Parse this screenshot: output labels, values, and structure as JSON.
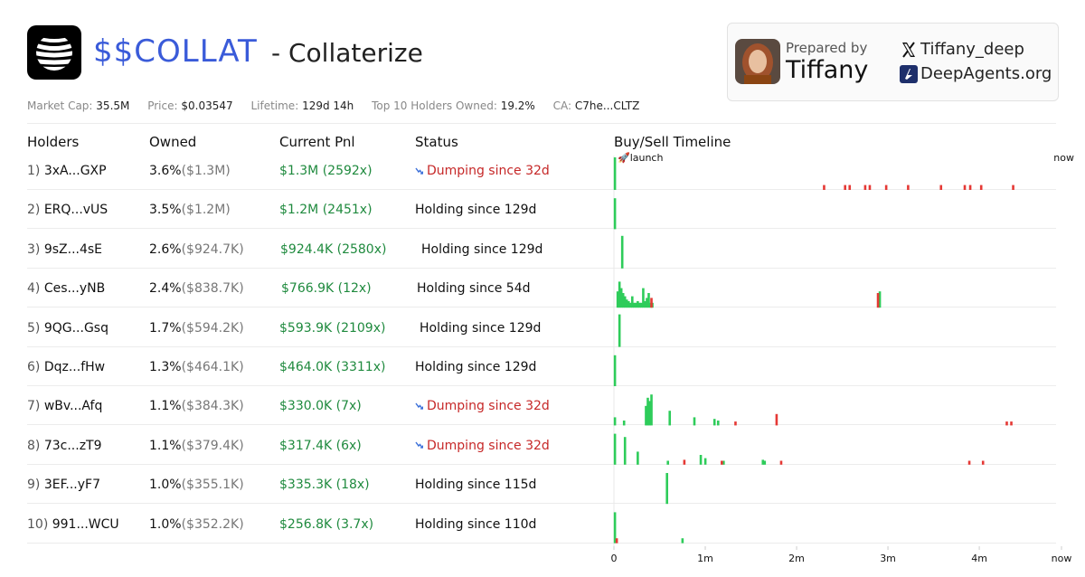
{
  "token": {
    "ticker": "$$COLLAT",
    "name": "- Collaterize"
  },
  "stats": [
    {
      "label": "Market Cap:",
      "value": "35.5M"
    },
    {
      "label": "Price:",
      "value": "$0.03547"
    },
    {
      "label": "Lifetime:",
      "value": "129d 14h"
    },
    {
      "label": "Top 10 Holders Owned:",
      "value": "19.2%"
    },
    {
      "label": "CA:",
      "value": "C7he...CLTZ"
    }
  ],
  "prepared": {
    "label": "Prepared by",
    "name": "Tiffany",
    "x_handle": "Tiffany_deep",
    "website": "DeepAgents.org"
  },
  "columns": {
    "holders": "Holders",
    "owned": "Owned",
    "pnl": "Current Pnl",
    "status": "Status",
    "timeline": "Buy/Sell Timeline"
  },
  "timeline": {
    "launch_label": "🚀launch",
    "now_label_top": "now",
    "x_ticks": [
      "0",
      "1m",
      "2m",
      "3m",
      "4m",
      "now"
    ],
    "colors": {
      "buy": "#2ecc5a",
      "sell": "#e53935"
    }
  },
  "holders": [
    {
      "rank": "1)",
      "address": "3xA...GXP",
      "pct": "3.6%",
      "usd": "($1.3M)",
      "pnl": "$1.3M (2592x)",
      "status": "Dumping since 32d",
      "dumping": true
    },
    {
      "rank": "2)",
      "address": "ERQ...vUS",
      "pct": "3.5%",
      "usd": "($1.2M)",
      "pnl": "$1.2M (2451x)",
      "status": "Holding since 129d",
      "dumping": false
    },
    {
      "rank": "3)",
      "address": "9sZ...4sE",
      "pct": "2.6%",
      "usd": "($924.7K)",
      "pnl": "$924.4K (2580x)",
      "status": "Holding since 129d",
      "dumping": false
    },
    {
      "rank": "4)",
      "address": "Ces...yNB",
      "pct": "2.4%",
      "usd": "($838.7K)",
      "pnl": "$766.9K (12x)",
      "status": "Holding since 54d",
      "dumping": false
    },
    {
      "rank": "5)",
      "address": "9QG...Gsq",
      "pct": "1.7%",
      "usd": "($594.2K)",
      "pnl": "$593.9K (2109x)",
      "status": "Holding since 129d",
      "dumping": false
    },
    {
      "rank": "6)",
      "address": "Dqz...fHw",
      "pct": "1.3%",
      "usd": "($464.1K)",
      "pnl": "$464.0K (3311x)",
      "status": "Holding since 129d",
      "dumping": false
    },
    {
      "rank": "7)",
      "address": "wBv...Afq",
      "pct": "1.1%",
      "usd": "($384.3K)",
      "pnl": "$330.0K (7x)",
      "status": "Dumping since 32d",
      "dumping": true
    },
    {
      "rank": "8)",
      "address": "73c...zT9",
      "pct": "1.1%",
      "usd": "($379.4K)",
      "pnl": "$317.4K (6x)",
      "status": "Dumping since 32d",
      "dumping": true
    },
    {
      "rank": "9)",
      "address": "3EF...yF7",
      "pct": "1.0%",
      "usd": "($355.1K)",
      "pnl": "$335.3K (18x)",
      "status": "Holding since 115d",
      "dumping": false
    },
    {
      "rank": "10)",
      "address": "991...WCU",
      "pct": "1.0%",
      "usd": "($352.2K)",
      "pnl": "$256.8K (3.7x)",
      "status": "Holding since 110d",
      "dumping": false
    }
  ],
  "chart_data": {
    "type": "bar",
    "x_unit": "months since launch",
    "xlim": [
      0,
      4.9
    ],
    "rows": [
      {
        "buys": [
          [
            0.01,
            1.0
          ]
        ],
        "sells": [
          [
            2.3,
            0.15
          ],
          [
            2.53,
            0.15
          ],
          [
            2.58,
            0.15
          ],
          [
            2.75,
            0.15
          ],
          [
            2.8,
            0.15
          ],
          [
            2.98,
            0.15
          ],
          [
            3.22,
            0.15
          ],
          [
            3.58,
            0.15
          ],
          [
            3.84,
            0.15
          ],
          [
            3.9,
            0.15
          ],
          [
            4.02,
            0.15
          ],
          [
            4.37,
            0.15
          ]
        ]
      },
      {
        "buys": [
          [
            0.01,
            0.95
          ]
        ],
        "sells": []
      },
      {
        "buys": [
          [
            0.09,
            1.0
          ]
        ],
        "sells": []
      },
      {
        "buys": [
          [
            0.04,
            0.5
          ],
          [
            0.06,
            0.8
          ],
          [
            0.08,
            0.6
          ],
          [
            0.1,
            0.45
          ],
          [
            0.12,
            0.35
          ],
          [
            0.14,
            0.25
          ],
          [
            0.16,
            0.2
          ],
          [
            0.18,
            0.15
          ],
          [
            0.2,
            0.35
          ],
          [
            0.22,
            0.15
          ],
          [
            0.24,
            0.15
          ],
          [
            0.26,
            0.2
          ],
          [
            0.28,
            0.15
          ],
          [
            0.3,
            0.15
          ],
          [
            0.32,
            0.6
          ],
          [
            0.34,
            0.2
          ],
          [
            0.36,
            0.3
          ],
          [
            0.38,
            0.45
          ],
          [
            0.4,
            0.15
          ],
          [
            0.42,
            0.15
          ],
          [
            2.91,
            0.5
          ]
        ],
        "sells": [
          [
            0.41,
            0.3
          ],
          [
            2.89,
            0.45
          ]
        ]
      },
      {
        "buys": [
          [
            0.06,
            1.0
          ]
        ],
        "sells": []
      },
      {
        "buys": [
          [
            0.01,
            0.95
          ]
        ],
        "sells": []
      },
      {
        "buys": [
          [
            0.01,
            0.25
          ],
          [
            0.11,
            0.15
          ],
          [
            0.35,
            0.6
          ],
          [
            0.37,
            0.85
          ],
          [
            0.39,
            0.75
          ],
          [
            0.41,
            0.95
          ],
          [
            0.61,
            0.45
          ],
          [
            0.88,
            0.25
          ],
          [
            1.1,
            0.2
          ],
          [
            1.14,
            0.15
          ]
        ],
        "sells": [
          [
            1.33,
            0.12
          ],
          [
            1.78,
            0.35
          ],
          [
            4.3,
            0.12
          ],
          [
            4.35,
            0.12
          ]
        ]
      },
      {
        "buys": [
          [
            0.01,
            0.95
          ],
          [
            0.12,
            0.85
          ],
          [
            0.26,
            0.4
          ],
          [
            0.59,
            0.12
          ],
          [
            0.95,
            0.3
          ],
          [
            1.0,
            0.2
          ],
          [
            1.2,
            0.12
          ],
          [
            1.63,
            0.15
          ],
          [
            1.65,
            0.12
          ]
        ],
        "sells": [
          [
            0.77,
            0.15
          ],
          [
            1.18,
            0.12
          ],
          [
            1.83,
            0.12
          ],
          [
            3.89,
            0.12
          ],
          [
            4.04,
            0.12
          ]
        ]
      },
      {
        "buys": [
          [
            0.58,
            0.95
          ]
        ],
        "sells": []
      },
      {
        "buys": [
          [
            0.01,
            0.95
          ],
          [
            0.75,
            0.15
          ]
        ],
        "sells": [
          [
            0.03,
            0.15
          ]
        ]
      }
    ]
  }
}
